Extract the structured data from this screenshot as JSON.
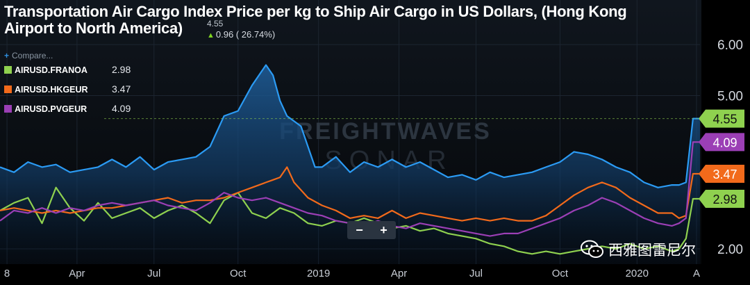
{
  "title_line1": "Transportation Air Cargo Index Price per kg to Ship Air Cargo in US Dollars, (Hong Kong",
  "title_line2": "Airport to North America)",
  "last_value": "4.55",
  "change_text": "0.96 ( 26.74%)",
  "compare_label": "Compare...",
  "watermark": {
    "line1": "FREIGHTWAVES",
    "line2": "SONAR"
  },
  "badge_text": "西雅图雷尼尔",
  "zoom": {
    "minus": "−",
    "plus": "+"
  },
  "legend": [
    {
      "name": "AIRUSD.FRANOA",
      "value": "2.98",
      "color": "#8fd14f"
    },
    {
      "name": "AIRUSD.HKGEUR",
      "value": "3.47",
      "color": "#f26a1b"
    },
    {
      "name": "AIRUSD.PVGEUR",
      "value": "4.09",
      "color": "#9b3fb5"
    }
  ],
  "chart_data": {
    "type": "line",
    "title": "Transportation Air Cargo Index Price per kg to Ship Air Cargo in US Dollars, (Hong Kong Airport to North America)",
    "xlabel": "",
    "ylabel": "",
    "ylim": [
      1.7,
      6.6
    ],
    "xlim": [
      0,
      100
    ],
    "y_ticks": [
      "2.00",
      "5.00",
      "6.00"
    ],
    "x_ticks": [
      {
        "label": "8",
        "x": 1
      },
      {
        "label": "Apr",
        "x": 11
      },
      {
        "label": "Jul",
        "x": 22
      },
      {
        "label": "Oct",
        "x": 34
      },
      {
        "label": "2019",
        "x": 45.5
      },
      {
        "label": "Apr",
        "x": 57
      },
      {
        "label": "Jul",
        "x": 68
      },
      {
        "label": "Oct",
        "x": 80
      },
      {
        "label": "2020",
        "x": 91
      },
      {
        "label": "A",
        "x": 99.5
      }
    ],
    "reference_value": 4.55,
    "end_labels": [
      {
        "text": "4.55",
        "value": 4.55,
        "color": "#8fd14f",
        "text_color": "#111111"
      },
      {
        "text": "4.09",
        "value": 4.09,
        "color": "#9b3fb5",
        "text_color": "#ffffff"
      },
      {
        "text": "3.47",
        "value": 3.47,
        "color": "#f26a1b",
        "text_color": "#ffffff"
      },
      {
        "text": "2.98",
        "value": 2.98,
        "color": "#8fd14f",
        "text_color": "#111111"
      }
    ],
    "series": [
      {
        "name": "Transportation Air Cargo Index (Hong Kong to North America)",
        "color": "#2b9bf4",
        "fill": true,
        "x": [
          0,
          2,
          4,
          6,
          8,
          10,
          12,
          14,
          16,
          18,
          20,
          22,
          24,
          26,
          28,
          30,
          32,
          34,
          36,
          38,
          39,
          40,
          41,
          42,
          43,
          44,
          45,
          46,
          48,
          50,
          52,
          54,
          56,
          58,
          60,
          62,
          64,
          66,
          68,
          70,
          72,
          74,
          76,
          78,
          80,
          82,
          84,
          85,
          86,
          88,
          90,
          92,
          94,
          96,
          97,
          98,
          99,
          100
        ],
        "y": [
          3.6,
          3.5,
          3.7,
          3.6,
          3.65,
          3.5,
          3.55,
          3.6,
          3.75,
          3.6,
          3.8,
          3.55,
          3.7,
          3.75,
          3.8,
          4.0,
          4.6,
          4.7,
          5.2,
          5.6,
          5.4,
          4.9,
          4.6,
          4.5,
          4.4,
          4.0,
          3.6,
          3.6,
          3.8,
          3.5,
          3.7,
          3.6,
          3.75,
          3.6,
          3.7,
          3.55,
          3.4,
          3.45,
          3.35,
          3.5,
          3.4,
          3.45,
          3.5,
          3.6,
          3.7,
          3.9,
          3.85,
          3.8,
          3.75,
          3.6,
          3.5,
          3.3,
          3.2,
          3.25,
          3.25,
          3.3,
          4.55,
          4.55
        ]
      },
      {
        "name": "AIRUSD.FRANOA",
        "color": "#8fd14f",
        "fill": false,
        "x": [
          0,
          2,
          4,
          6,
          8,
          10,
          12,
          14,
          16,
          18,
          20,
          22,
          24,
          26,
          28,
          30,
          32,
          34,
          36,
          38,
          40,
          42,
          44,
          46,
          48,
          50,
          52,
          54,
          56,
          58,
          60,
          62,
          64,
          66,
          68,
          70,
          72,
          74,
          76,
          78,
          80,
          82,
          84,
          86,
          88,
          90,
          92,
          94,
          96,
          97,
          98,
          99,
          100
        ],
        "y": [
          2.75,
          2.9,
          3.0,
          2.5,
          3.2,
          2.8,
          2.55,
          2.9,
          2.6,
          2.7,
          2.8,
          2.6,
          2.75,
          2.85,
          2.7,
          2.5,
          2.95,
          3.1,
          2.7,
          2.6,
          2.8,
          2.7,
          2.5,
          2.45,
          2.55,
          2.5,
          2.6,
          2.5,
          2.4,
          2.45,
          2.35,
          2.4,
          2.3,
          2.25,
          2.2,
          2.1,
          2.05,
          1.95,
          1.9,
          1.95,
          1.9,
          1.95,
          2.0,
          2.05,
          2.0,
          2.1,
          2.0,
          2.05,
          1.95,
          2.0,
          2.2,
          2.98,
          2.98
        ]
      },
      {
        "name": "AIRUSD.HKGEUR",
        "color": "#f26a1b",
        "fill": false,
        "x": [
          0,
          2,
          4,
          6,
          8,
          10,
          12,
          14,
          16,
          18,
          20,
          22,
          24,
          26,
          28,
          30,
          32,
          34,
          36,
          38,
          39,
          40,
          41,
          42,
          44,
          46,
          48,
          50,
          52,
          54,
          56,
          58,
          60,
          62,
          64,
          66,
          68,
          70,
          72,
          74,
          76,
          78,
          80,
          82,
          84,
          86,
          88,
          90,
          92,
          94,
          96,
          97,
          98,
          99,
          100
        ],
        "y": [
          2.75,
          2.8,
          2.75,
          2.7,
          2.75,
          2.7,
          2.75,
          2.8,
          2.8,
          2.85,
          2.9,
          2.95,
          3.0,
          2.9,
          2.95,
          2.95,
          3.0,
          3.1,
          3.2,
          3.3,
          3.35,
          3.4,
          3.6,
          3.3,
          3.0,
          2.85,
          2.75,
          2.6,
          2.65,
          2.6,
          2.75,
          2.6,
          2.7,
          2.65,
          2.6,
          2.55,
          2.6,
          2.55,
          2.6,
          2.55,
          2.55,
          2.65,
          2.85,
          3.05,
          3.2,
          3.3,
          3.2,
          3.0,
          2.85,
          2.7,
          2.7,
          2.6,
          2.65,
          3.47,
          3.47
        ]
      },
      {
        "name": "AIRUSD.PVGEUR",
        "color": "#9b3fb5",
        "fill": false,
        "x": [
          0,
          2,
          4,
          6,
          8,
          10,
          12,
          14,
          16,
          18,
          20,
          22,
          24,
          26,
          28,
          30,
          32,
          34,
          36,
          38,
          40,
          42,
          44,
          46,
          48,
          50,
          52,
          54,
          56,
          58,
          60,
          62,
          64,
          66,
          68,
          70,
          72,
          74,
          76,
          78,
          80,
          82,
          84,
          86,
          88,
          90,
          92,
          94,
          96,
          97,
          98,
          99,
          100
        ],
        "y": [
          2.55,
          2.75,
          2.7,
          2.8,
          2.7,
          2.8,
          2.75,
          2.85,
          2.9,
          2.85,
          2.9,
          2.95,
          2.85,
          2.8,
          2.75,
          2.9,
          3.1,
          3.0,
          2.95,
          3.0,
          2.9,
          2.8,
          2.7,
          2.65,
          2.55,
          2.5,
          2.45,
          2.55,
          2.45,
          2.4,
          2.5,
          2.45,
          2.4,
          2.35,
          2.3,
          2.25,
          2.3,
          2.3,
          2.4,
          2.5,
          2.6,
          2.75,
          2.85,
          3.0,
          2.9,
          2.75,
          2.6,
          2.5,
          2.45,
          2.5,
          2.6,
          4.09,
          4.09
        ]
      }
    ]
  }
}
